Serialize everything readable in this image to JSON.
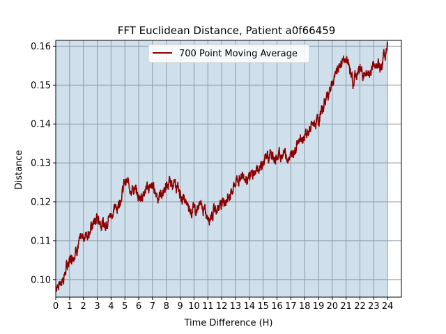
{
  "chart_data": {
    "type": "line",
    "title": "FFT Euclidean Distance, Patient a0f66459",
    "xlabel": "Time Difference (H)",
    "ylabel": "Distance",
    "xlim": [
      0,
      25
    ],
    "ylim": [
      0.0955,
      0.1615
    ],
    "x_ticks": [
      0,
      1,
      2,
      3,
      4,
      5,
      6,
      7,
      8,
      9,
      10,
      11,
      12,
      13,
      14,
      15,
      16,
      17,
      18,
      19,
      20,
      21,
      22,
      23,
      24
    ],
    "y_ticks": [
      0.1,
      0.11,
      0.12,
      0.13,
      0.14,
      0.15,
      0.16
    ],
    "grid": true,
    "shaded_region": {
      "x_start": 0,
      "x_end": 24,
      "color": "#cfe0ec"
    },
    "legend": {
      "placement": "top-center",
      "entries": [
        "700 Point Moving Average"
      ]
    },
    "series": [
      {
        "name": "700 Point Moving Average",
        "color": "#8b0000",
        "x": [
          0,
          0.5,
          1,
          1.5,
          2,
          2.5,
          3,
          3.5,
          4,
          4.5,
          5,
          5.5,
          6,
          6.5,
          7,
          7.5,
          8,
          8.5,
          9,
          9.5,
          10,
          10.5,
          11,
          11.5,
          12,
          12.5,
          13,
          13.5,
          14,
          14.5,
          15,
          15.5,
          16,
          16.5,
          17,
          17.5,
          18,
          18.5,
          19,
          19.5,
          20,
          20.5,
          21,
          21.5,
          22,
          22.5,
          23,
          23.5,
          24
        ],
        "values": [
          0.098,
          0.1,
          0.105,
          0.108,
          0.111,
          0.113,
          0.116,
          0.114,
          0.117,
          0.119,
          0.125,
          0.124,
          0.121,
          0.123,
          0.124,
          0.121,
          0.124,
          0.125,
          0.122,
          0.119,
          0.118,
          0.119,
          0.116,
          0.118,
          0.12,
          0.121,
          0.125,
          0.127,
          0.126,
          0.128,
          0.13,
          0.132,
          0.131,
          0.133,
          0.131,
          0.136,
          0.137,
          0.139,
          0.141,
          0.146,
          0.15,
          0.155,
          0.157,
          0.151,
          0.154,
          0.152,
          0.155,
          0.155,
          0.16
        ]
      }
    ]
  }
}
